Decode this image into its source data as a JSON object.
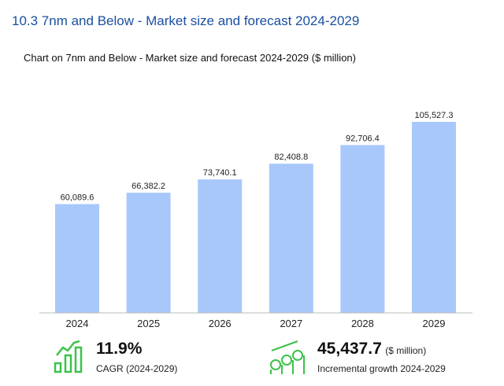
{
  "section_title": "10.3 7nm and Below - Market size and forecast 2024-2029",
  "chart_data": {
    "type": "bar",
    "title": "Chart on 7nm and Below - Market size and forecast 2024-2029 ($ million)",
    "categories": [
      "2024",
      "2025",
      "2026",
      "2027",
      "2028",
      "2029"
    ],
    "values": [
      60089.6,
      66382.2,
      73740.1,
      82408.8,
      92706.4,
      105527.3
    ],
    "data_labels": [
      "60,089.6",
      "66,382.2",
      "73,740.1",
      "82,408.8",
      "92,706.4",
      "105,527.3"
    ],
    "ylim": [
      0,
      105527.3
    ],
    "bar_color": "#a8c8fb",
    "grid": false
  },
  "kpis": {
    "cagr": {
      "value": "11.9%",
      "label": "CAGR (2024-2029)",
      "icon": "growth-bars-icon"
    },
    "growth": {
      "value": "45,437.7",
      "unit": "($ million)",
      "label": "Incremental growth 2024-2029",
      "icon": "money-growth-icon"
    }
  },
  "icon_color": "#3cc24a"
}
